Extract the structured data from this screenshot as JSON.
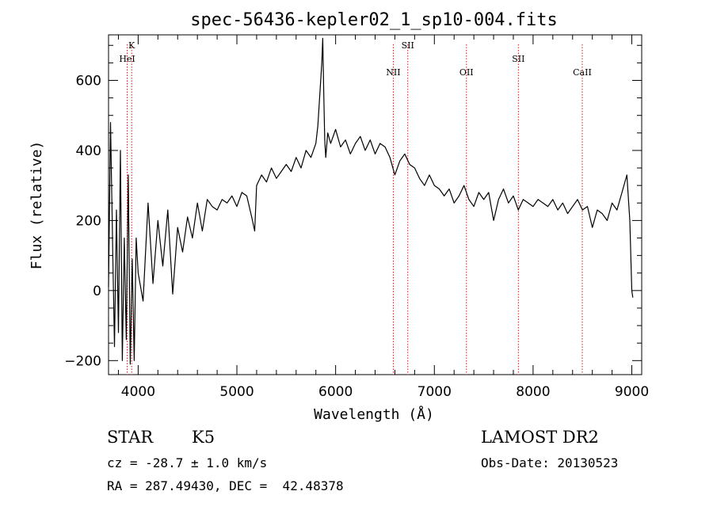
{
  "chart_data": {
    "type": "line",
    "title": "spec-56436-kepler02_1_sp10-004.fits",
    "xlabel": "Wavelength (Å)",
    "ylabel": "Flux (relative)",
    "xlim": [
      3700,
      9100
    ],
    "ylim": [
      -240,
      730
    ],
    "xticks": [
      4000,
      5000,
      6000,
      7000,
      8000,
      9000
    ],
    "yticks": [
      -200,
      0,
      200,
      400,
      600
    ],
    "series": [
      {
        "color": "#000000",
        "x": [
          3700,
          3720,
          3740,
          3760,
          3780,
          3800,
          3820,
          3840,
          3860,
          3880,
          3900,
          3920,
          3940,
          3960,
          3980,
          4000,
          4050,
          4100,
          4150,
          4200,
          4250,
          4300,
          4350,
          4400,
          4450,
          4500,
          4550,
          4600,
          4650,
          4700,
          4750,
          4800,
          4850,
          4900,
          4950,
          5000,
          5050,
          5100,
          5150,
          5180,
          5200,
          5250,
          5300,
          5350,
          5400,
          5450,
          5500,
          5550,
          5600,
          5650,
          5700,
          5750,
          5800,
          5820,
          5840,
          5860,
          5870,
          5880,
          5890,
          5900,
          5920,
          5950,
          6000,
          6050,
          6100,
          6150,
          6200,
          6250,
          6300,
          6350,
          6400,
          6450,
          6500,
          6550,
          6600,
          6650,
          6700,
          6750,
          6800,
          6850,
          6900,
          6950,
          7000,
          7050,
          7100,
          7150,
          7200,
          7250,
          7300,
          7350,
          7400,
          7450,
          7500,
          7550,
          7600,
          7650,
          7700,
          7750,
          7800,
          7850,
          7900,
          7950,
          8000,
          8050,
          8100,
          8150,
          8200,
          8250,
          8300,
          8350,
          8400,
          8450,
          8500,
          8550,
          8600,
          8650,
          8700,
          8750,
          8800,
          8850,
          8900,
          8950,
          8980,
          9000,
          9010
        ],
        "y": [
          10,
          480,
          150,
          -160,
          230,
          -120,
          400,
          -200,
          150,
          -140,
          330,
          -210,
          90,
          -200,
          150,
          50,
          -30,
          250,
          20,
          200,
          70,
          230,
          -10,
          180,
          110,
          210,
          150,
          250,
          170,
          260,
          240,
          230,
          260,
          250,
          270,
          240,
          280,
          270,
          210,
          170,
          300,
          330,
          310,
          350,
          320,
          340,
          360,
          340,
          380,
          350,
          400,
          380,
          420,
          470,
          560,
          650,
          720,
          560,
          430,
          380,
          450,
          420,
          460,
          410,
          430,
          390,
          420,
          440,
          400,
          430,
          390,
          420,
          410,
          380,
          330,
          370,
          390,
          360,
          350,
          320,
          300,
          330,
          300,
          290,
          270,
          290,
          250,
          270,
          300,
          260,
          240,
          280,
          260,
          280,
          200,
          260,
          290,
          250,
          270,
          230,
          260,
          250,
          240,
          260,
          250,
          240,
          260,
          230,
          250,
          220,
          240,
          260,
          230,
          240,
          180,
          230,
          220,
          200,
          250,
          230,
          280,
          330,
          200,
          0,
          -20
        ]
      }
    ],
    "spectral_lines": [
      {
        "label": "K",
        "x": 3934,
        "row": 0
      },
      {
        "label": "HeI",
        "x": 3889,
        "row": 1
      },
      {
        "label": "NII",
        "x": 6584,
        "row": 2
      },
      {
        "label": "SII",
        "x": 6731,
        "row": 0
      },
      {
        "label": "OII",
        "x": 7325,
        "row": 2
      },
      {
        "label": "SII",
        "x": 7851,
        "row": 1
      },
      {
        "label": "CaII",
        "x": 8498,
        "row": 2
      }
    ],
    "line_color": "#b22222",
    "grid": false,
    "legend": "none"
  },
  "info": {
    "object_class": "STAR",
    "subclass": "K5",
    "survey": "LAMOST DR2",
    "cz": "cz = -28.7 ± 1.0 km/s",
    "coords": "RA = 287.49430, DEC =  42.48378",
    "obs_date": "Obs-Date: 20130523"
  }
}
